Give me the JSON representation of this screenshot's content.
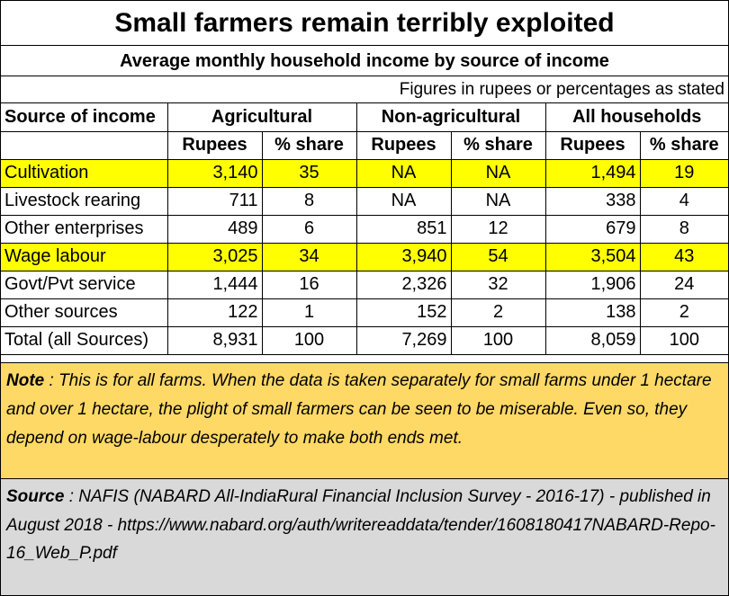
{
  "title": "Small farmers remain terribly exploited",
  "subtitle": "Average monthly household income by source of income",
  "figures_note": "Figures in rupees or percentages as stated",
  "highlight_color": "#ffff00",
  "note_color": "#ffd966",
  "source_color": "#d9d9d9",
  "chart_data": {
    "type": "table",
    "row_header_label": "Source of income",
    "groups": [
      "Agricultural",
      "Non-agricultural",
      "All households"
    ],
    "subheaders": [
      "Rupees",
      "% share"
    ],
    "rows": [
      {
        "label": "Cultivation",
        "highlight": true,
        "values": [
          "3,140",
          "35",
          "NA",
          "NA",
          "1,494",
          "19"
        ]
      },
      {
        "label": "Livestock rearing",
        "highlight": false,
        "values": [
          "711",
          "8",
          "NA",
          "NA",
          "338",
          "4"
        ]
      },
      {
        "label": "Other enterprises",
        "highlight": false,
        "values": [
          "489",
          "6",
          "851",
          "12",
          "679",
          "8"
        ]
      },
      {
        "label": "Wage labour",
        "highlight": true,
        "values": [
          "3,025",
          "34",
          "3,940",
          "54",
          "3,504",
          "43"
        ]
      },
      {
        "label": "Govt/Pvt service",
        "highlight": false,
        "values": [
          "1,444",
          "16",
          "2,326",
          "32",
          "1,906",
          "24"
        ]
      },
      {
        "label": "Other sources",
        "highlight": false,
        "values": [
          "122",
          "1",
          "152",
          "2",
          "138",
          "2"
        ]
      },
      {
        "label": "Total (all Sources)",
        "highlight": false,
        "values": [
          "8,931",
          "100",
          "7,269",
          "100",
          "8,059",
          "100"
        ]
      }
    ]
  },
  "note": {
    "label": "Note",
    "text": " :  This is for all farms.  When the data is taken separately for small farms under 1 hectare and over 1 hectare, the plight of small farmers can be seen to be miserable. Even so, they depend on wage-labour desperately to make both ends met."
  },
  "source": {
    "label": "Source",
    "text": " : NAFIS (NABARD All-IndiaRural Financial Inclusion Survey - 2016-17)  - published in August 2018 - https://www.nabard.org/auth/writereaddata/tender/1608180417NABARD-Repo-16_Web_P.pdf"
  }
}
